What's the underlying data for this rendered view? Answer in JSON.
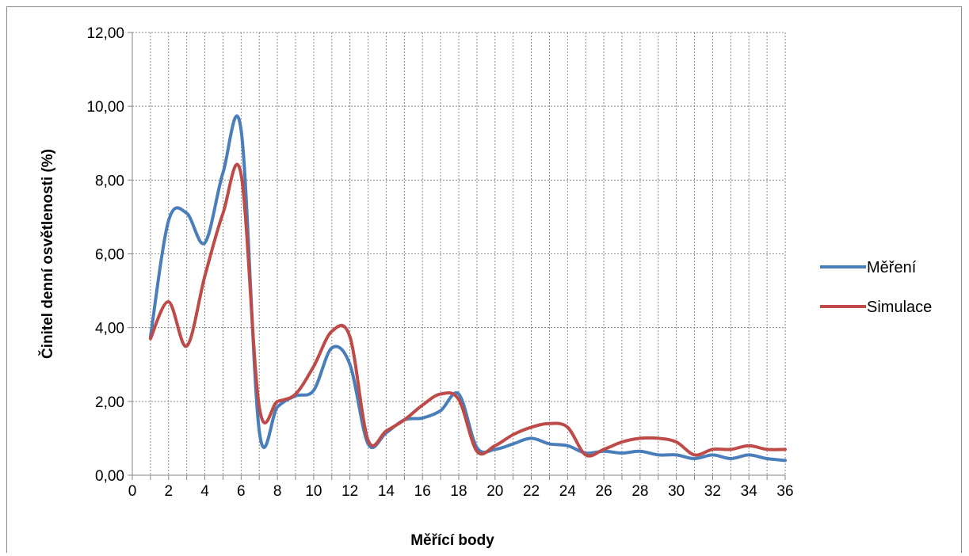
{
  "chart_data": {
    "type": "line",
    "title": "",
    "xlabel": "Měřící body",
    "ylabel": "Činitel denní osvětlenosti (%)",
    "xlim": [
      0,
      36
    ],
    "ylim": [
      0,
      12
    ],
    "x_ticks": [
      "0",
      "2",
      "4",
      "6",
      "8",
      "10",
      "12",
      "14",
      "16",
      "18",
      "20",
      "22",
      "24",
      "26",
      "28",
      "30",
      "32",
      "34",
      "36"
    ],
    "y_ticks": [
      "0,00",
      "2,00",
      "4,00",
      "6,00",
      "8,00",
      "10,00",
      "12,00"
    ],
    "grid": true,
    "legend_position": "right",
    "x": [
      1,
      2,
      3,
      4,
      5,
      6,
      7,
      8,
      9,
      10,
      11,
      12,
      13,
      14,
      15,
      16,
      17,
      18,
      19,
      20,
      21,
      22,
      23,
      24,
      25,
      26,
      27,
      28,
      29,
      30,
      31,
      32,
      33,
      34,
      35,
      36
    ],
    "series": [
      {
        "name": "Měření",
        "color": "#4a7ebb",
        "values": [
          3.75,
          6.9,
          7.1,
          6.3,
          8.2,
          9.35,
          1.2,
          1.85,
          2.15,
          2.3,
          3.45,
          3.0,
          0.85,
          1.15,
          1.5,
          1.55,
          1.75,
          2.2,
          0.75,
          0.7,
          0.85,
          1.0,
          0.85,
          0.8,
          0.6,
          0.65,
          0.6,
          0.65,
          0.55,
          0.55,
          0.45,
          0.55,
          0.45,
          0.55,
          0.45,
          0.4
        ]
      },
      {
        "name": "Simulace",
        "color": "#be4b48",
        "values": [
          3.7,
          4.7,
          3.5,
          5.4,
          7.1,
          8.15,
          1.85,
          2.0,
          2.2,
          2.95,
          3.9,
          3.75,
          0.95,
          1.2,
          1.5,
          1.9,
          2.2,
          2.05,
          0.65,
          0.8,
          1.1,
          1.3,
          1.4,
          1.3,
          0.55,
          0.7,
          0.9,
          1.0,
          1.0,
          0.9,
          0.55,
          0.7,
          0.7,
          0.8,
          0.7,
          0.7
        ]
      }
    ]
  }
}
